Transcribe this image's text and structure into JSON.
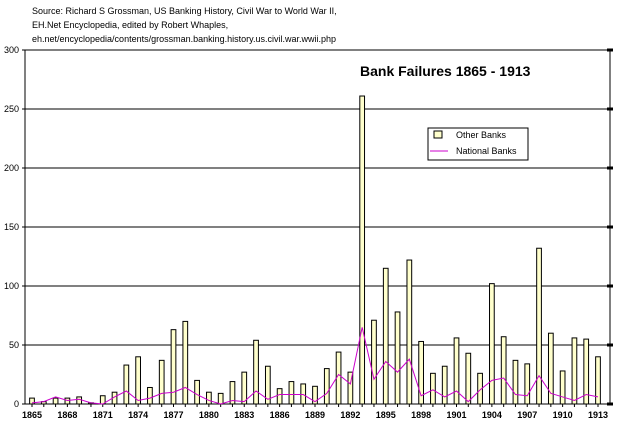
{
  "source_lines": [
    "Source: Richard S Grossman, US Banking History, Civil War to World War II,",
    "EH.Net Encyclopedia, edited by Robert Whaples,",
    "eh.net/encyclopedia/contents/grossman.banking.history.us.civil.war.wwii.php"
  ],
  "chart_data": {
    "type": "bar",
    "title": "Bank Failures 1865 - 1913",
    "xlabel": "",
    "ylabel": "",
    "ylim": [
      0,
      300
    ],
    "yticks": [
      0,
      50,
      100,
      150,
      200,
      250,
      300
    ],
    "grid": true,
    "legend_position": "upper-right",
    "x": [
      1865,
      1866,
      1867,
      1868,
      1869,
      1870,
      1871,
      1872,
      1873,
      1874,
      1875,
      1876,
      1877,
      1878,
      1879,
      1880,
      1881,
      1882,
      1883,
      1884,
      1885,
      1886,
      1887,
      1888,
      1889,
      1890,
      1891,
      1892,
      1893,
      1894,
      1895,
      1896,
      1897,
      1898,
      1899,
      1900,
      1901,
      1902,
      1903,
      1904,
      1905,
      1906,
      1907,
      1908,
      1909,
      1910,
      1911,
      1912,
      1913
    ],
    "xticks": [
      "1865",
      "1868",
      "1871",
      "1874",
      "1877",
      "1880",
      "1883",
      "1886",
      "1889",
      "1892",
      "1895",
      "1898",
      "1901",
      "1904",
      "1907",
      "1910",
      "1913"
    ],
    "series": [
      {
        "name": "Other Banks",
        "type": "bar",
        "color": "#ffffcc",
        "values": [
          5,
          2,
          5,
          5,
          6,
          1,
          7,
          10,
          33,
          40,
          14,
          37,
          63,
          70,
          20,
          10,
          9,
          19,
          27,
          54,
          32,
          13,
          19,
          17,
          15,
          30,
          44,
          27,
          261,
          71,
          115,
          78,
          122,
          53,
          26,
          32,
          56,
          43,
          26,
          102,
          57,
          37,
          34,
          132,
          60,
          28,
          56,
          55,
          40
        ]
      },
      {
        "name": "National Banks",
        "type": "line",
        "color": "#cc00cc",
        "values": [
          1,
          2,
          6,
          3,
          4,
          1,
          0,
          6,
          11,
          3,
          5,
          9,
          10,
          14,
          8,
          3,
          0,
          3,
          2,
          11,
          4,
          8,
          8,
          8,
          2,
          9,
          25,
          17,
          65,
          21,
          36,
          27,
          38,
          7,
          12,
          6,
          11,
          2,
          12,
          20,
          22,
          8,
          7,
          24,
          9,
          6,
          3,
          8,
          6
        ]
      }
    ]
  }
}
